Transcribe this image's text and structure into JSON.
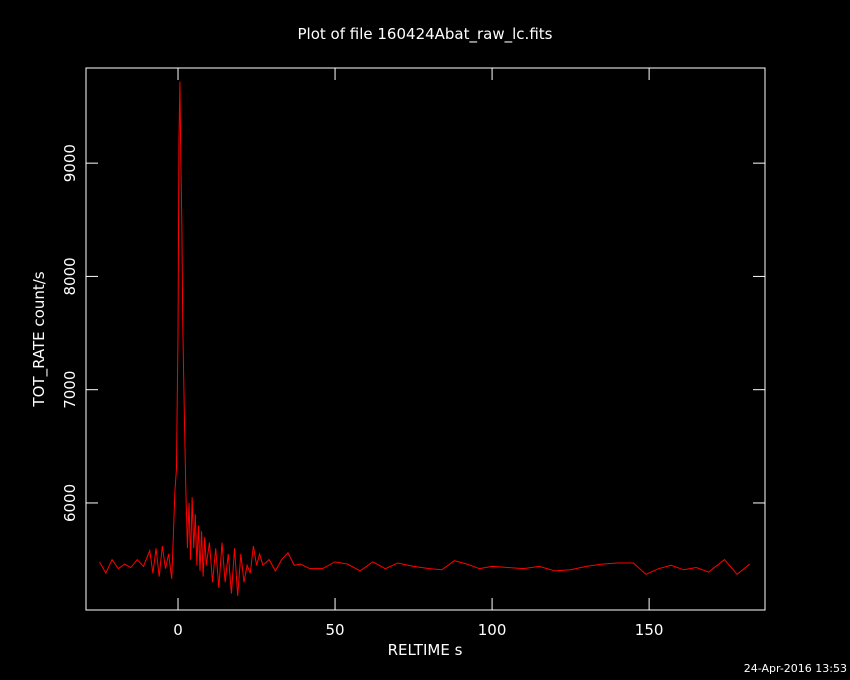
{
  "chart_data": {
    "type": "line",
    "title": "Plot of file 160424Abat_raw_lc.fits",
    "xlabel": "RELTIME  s",
    "ylabel": "TOT_RATE  count/s",
    "timestamp": "24-Apr-2016 13:53",
    "background": "#000000",
    "axis_color": "#ffffff",
    "xlim": [
      -29.3,
      186.9
    ],
    "ylim": [
      5055,
      9840
    ],
    "xticks": [
      0,
      50,
      100,
      150
    ],
    "yticks": [
      6000,
      7000,
      8000,
      9000
    ],
    "x": [
      -25,
      -23,
      -21,
      -19,
      -17,
      -15,
      -13,
      -11,
      -9,
      -8,
      -7,
      -6,
      -5,
      -4,
      -3,
      -2,
      -1.5,
      -1,
      -0.5,
      0,
      0.3,
      0.6,
      0.9,
      1.2,
      1.5,
      2,
      2.5,
      3,
      3.5,
      4,
      4.5,
      5,
      5.5,
      6,
      6.5,
      7,
      7.5,
      8,
      8.5,
      9,
      10,
      11,
      12,
      13,
      14,
      15,
      16,
      17,
      18,
      19,
      20,
      21,
      22,
      23,
      24,
      25,
      26,
      27,
      29,
      31,
      33,
      35,
      37,
      39,
      42,
      46,
      50,
      54,
      58,
      62,
      66,
      70,
      75,
      80,
      84,
      88,
      92,
      96,
      100,
      105,
      110,
      115,
      120,
      125,
      130,
      135,
      140,
      145,
      149,
      153,
      157,
      161,
      165,
      169,
      174,
      178,
      182
    ],
    "series": [
      {
        "name": "TOT_RATE",
        "color": "#ff0000",
        "values": [
          5480,
          5380,
          5500,
          5420,
          5460,
          5430,
          5500,
          5440,
          5580,
          5380,
          5600,
          5350,
          5620,
          5420,
          5550,
          5330,
          5700,
          6100,
          6300,
          7500,
          9200,
          9720,
          9000,
          8500,
          7600,
          6800,
          6100,
          5600,
          6000,
          5500,
          6050,
          5600,
          5900,
          5450,
          5800,
          5400,
          5750,
          5350,
          5700,
          5450,
          5650,
          5300,
          5600,
          5250,
          5650,
          5300,
          5550,
          5200,
          5600,
          5180,
          5550,
          5300,
          5450,
          5380,
          5620,
          5450,
          5550,
          5450,
          5500,
          5400,
          5500,
          5560,
          5450,
          5460,
          5420,
          5420,
          5480,
          5460,
          5400,
          5480,
          5420,
          5470,
          5440,
          5420,
          5410,
          5490,
          5460,
          5420,
          5440,
          5430,
          5420,
          5440,
          5400,
          5410,
          5440,
          5460,
          5470,
          5470,
          5370,
          5420,
          5450,
          5410,
          5430,
          5390,
          5500,
          5370,
          5460
        ]
      }
    ]
  }
}
